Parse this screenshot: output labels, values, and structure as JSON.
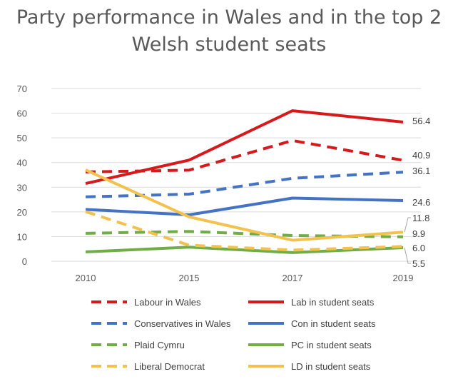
{
  "title_line1": "Party performance in Wales and in the top 2",
  "title_line2": "Welsh student seats",
  "chart_data": {
    "type": "line",
    "title": "Party performance in Wales and in the top 2 Welsh student seats",
    "x": [
      "2010",
      "2015",
      "2017",
      "2019"
    ],
    "ylim": [
      0,
      70
    ],
    "yticks": [
      0,
      10,
      20,
      30,
      40,
      50,
      60,
      70
    ],
    "grid": true,
    "legend_position": "bottom",
    "series": [
      {
        "name": "Labour in Wales",
        "color": "#d7191c",
        "dashed": true,
        "values": [
          36.2,
          36.9,
          48.9,
          40.9
        ],
        "end_label": "40.9"
      },
      {
        "name": "Lab in student seats",
        "color": "#d7191c",
        "dashed": false,
        "values": [
          31.5,
          41.0,
          61.0,
          56.4
        ],
        "end_label": "56.4"
      },
      {
        "name": "Conservatives in Wales",
        "color": "#4472c4",
        "dashed": true,
        "values": [
          26.1,
          27.2,
          33.6,
          36.1
        ],
        "end_label": "36.1"
      },
      {
        "name": "Con in student seats",
        "color": "#4472c4",
        "dashed": false,
        "values": [
          21.0,
          18.8,
          25.6,
          24.6
        ],
        "end_label": "24.6"
      },
      {
        "name": "Plaid Cymru",
        "color": "#70ad47",
        "dashed": true,
        "values": [
          11.3,
          12.1,
          10.4,
          9.9
        ],
        "end_label": "9.9"
      },
      {
        "name": "PC in student seats",
        "color": "#70ad47",
        "dashed": false,
        "values": [
          3.8,
          5.7,
          3.5,
          5.5
        ],
        "end_label": "5.5"
      },
      {
        "name": "Liberal Democrat",
        "color": "#f2c14e",
        "dashed": true,
        "values": [
          20.1,
          6.5,
          4.5,
          6.0
        ],
        "end_label": "6.0"
      },
      {
        "name": "LD in student seats",
        "color": "#f2c14e",
        "dashed": false,
        "values": [
          37.0,
          18.0,
          8.5,
          11.8
        ],
        "end_label": "11.8"
      }
    ]
  }
}
